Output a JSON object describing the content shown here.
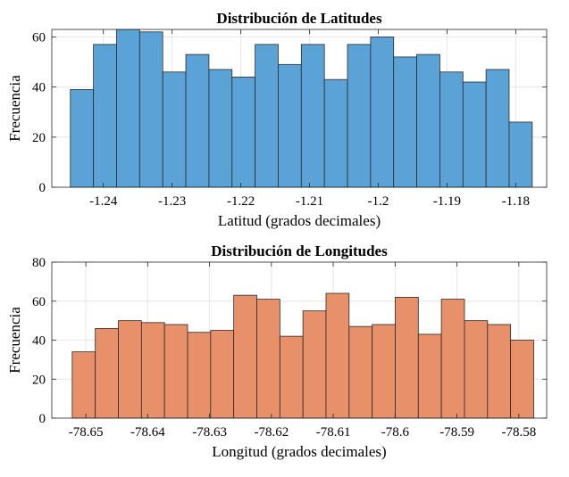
{
  "chart_data": [
    {
      "type": "bar",
      "title": "Distribución de Latitudes",
      "xlabel": "Latitud (grados decimales)",
      "ylabel": "Frecuencia",
      "bar_color": "#5BA3D6",
      "edge_color": "#2a2a2a",
      "grid": true,
      "xlim": [
        -1.2475,
        -1.1755
      ],
      "ylim": [
        0,
        63
      ],
      "bin_start": -1.2448,
      "bin_width": 0.00336,
      "values": [
        39,
        57,
        63,
        62,
        46,
        53,
        47,
        44,
        57,
        49,
        57,
        43,
        57,
        60,
        52,
        53,
        46,
        42,
        47,
        26
      ],
      "xticks": [
        -1.24,
        -1.23,
        -1.22,
        -1.21,
        -1.2,
        -1.19,
        -1.18
      ],
      "xtick_labels": [
        "-1.24",
        "-1.23",
        "-1.22",
        "-1.21",
        "-1.2",
        "-1.19",
        "-1.18"
      ],
      "yticks": [
        0,
        20,
        40,
        60
      ],
      "ytick_labels": [
        "0",
        "20",
        "40",
        "60"
      ]
    },
    {
      "type": "bar",
      "title": "Distribución de Longitudes",
      "xlabel": "Longitud (grados decimales)",
      "ylabel": "Frecuencia",
      "bar_color": "#E8906A",
      "edge_color": "#2a2a2a",
      "grid": true,
      "xlim": [
        -78.6555,
        -78.5755
      ],
      "ylim": [
        0,
        80
      ],
      "bin_start": -78.6522,
      "bin_width": 0.00373,
      "values": [
        34,
        46,
        50,
        49,
        48,
        44,
        45,
        63,
        61,
        42,
        55,
        64,
        47,
        48,
        62,
        43,
        61,
        50,
        48,
        40
      ],
      "xticks": [
        -78.65,
        -78.64,
        -78.63,
        -78.62,
        -78.61,
        -78.6,
        -78.59,
        -78.58
      ],
      "xtick_labels": [
        "-78.65",
        "-78.64",
        "-78.63",
        "-78.62",
        "-78.61",
        "-78.6",
        "-78.59",
        "-78.58"
      ],
      "yticks": [
        0,
        20,
        40,
        60,
        80
      ],
      "ytick_labels": [
        "0",
        "20",
        "40",
        "60",
        "80"
      ]
    }
  ]
}
